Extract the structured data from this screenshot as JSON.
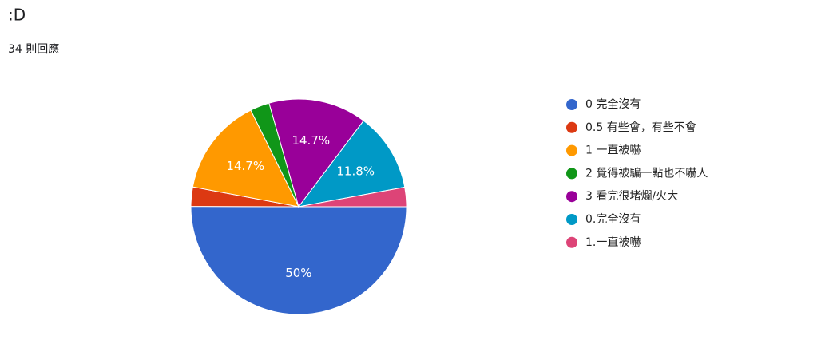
{
  "chart_data": {
    "type": "pie",
    "title": ":D",
    "subtitle": "34 則回應",
    "categories": [
      "0 完全沒有",
      "0.5 有些會，有些不會",
      "1 一直被嚇",
      "2 覺得被騙一點也不嚇人",
      "3 看完很堵爛/火大",
      "0.完全沒有",
      "1.一直被嚇"
    ],
    "values": [
      50,
      2.9,
      14.7,
      2.9,
      14.7,
      11.8,
      2.9
    ],
    "value_labels": [
      "50%",
      null,
      "14.7%",
      null,
      "14.7%",
      "11.8%",
      null
    ],
    "colors": [
      "#3366cc",
      "#dc3912",
      "#ff9900",
      "#109618",
      "#990099",
      "#0099c6",
      "#dd4477"
    ],
    "legend": "right"
  }
}
